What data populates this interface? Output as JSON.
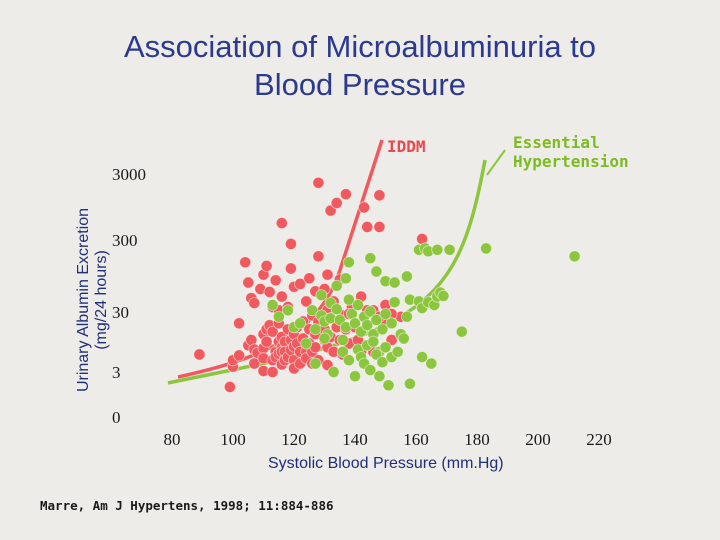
{
  "slide": {
    "title_line1": "Association of Microalbuminuria to",
    "title_line2": "Blood Pressure",
    "citation": "Marre, Am J Hypertens, 1998; 11:884-886"
  },
  "colors": {
    "background": "#eeece8",
    "title": "#2b3a8f",
    "iddm": "#f05a5f",
    "essential_hypertension": "#8cc63f",
    "iddm_label": "#e8484e",
    "eh_label": "#7cbb22"
  },
  "chart_data": {
    "type": "scatter",
    "xlabel": "Systolic Blood Pressure (mm.Hg)",
    "ylabel_line1": "Urinary Albumin Excretion",
    "ylabel_line2": "(mg/24 hours)",
    "xlim": [
      80,
      220
    ],
    "x_ticks": [
      80,
      100,
      120,
      140,
      160,
      180,
      200,
      220
    ],
    "y_ticks": [
      0,
      3,
      30,
      300,
      3000
    ],
    "y_tick_labels": [
      "0",
      "3",
      "30",
      "300",
      "3000"
    ],
    "y_scale": "log",
    "series": [
      {
        "name": "IDDM",
        "points": [
          [
            89,
            5.5
          ],
          [
            99,
            1.8
          ],
          [
            100,
            3.6
          ],
          [
            100,
            4.5
          ],
          [
            102,
            5.3
          ],
          [
            102,
            16
          ],
          [
            105,
            7.5
          ],
          [
            106,
            9
          ],
          [
            107,
            6.5
          ],
          [
            107,
            4
          ],
          [
            108,
            5.8
          ],
          [
            110,
            11
          ],
          [
            110,
            6.8
          ],
          [
            110,
            4.8
          ],
          [
            110,
            3.1
          ],
          [
            111,
            13
          ],
          [
            111,
            8.5
          ],
          [
            112,
            15
          ],
          [
            113,
            12
          ],
          [
            113,
            4.5
          ],
          [
            113,
            3
          ],
          [
            114,
            6
          ],
          [
            114,
            5
          ],
          [
            115,
            16
          ],
          [
            115,
            8.5
          ],
          [
            115,
            5.6
          ],
          [
            116,
            10
          ],
          [
            116,
            7
          ],
          [
            116,
            6
          ],
          [
            116,
            3.9
          ],
          [
            117,
            8.5
          ],
          [
            117,
            6
          ],
          [
            117,
            4.5
          ],
          [
            118,
            13
          ],
          [
            118,
            5
          ],
          [
            119,
            9
          ],
          [
            119,
            6.4
          ],
          [
            120,
            11
          ],
          [
            120,
            7.2
          ],
          [
            120,
            4.5
          ],
          [
            120,
            3.4
          ],
          [
            121,
            14
          ],
          [
            121,
            8
          ],
          [
            122,
            6
          ],
          [
            122,
            4
          ],
          [
            123,
            17
          ],
          [
            123,
            9.5
          ],
          [
            124,
            6
          ],
          [
            124,
            4.8
          ],
          [
            125,
            13
          ],
          [
            125,
            8
          ],
          [
            126,
            21
          ],
          [
            126,
            6
          ],
          [
            126,
            4
          ],
          [
            127,
            11
          ],
          [
            127,
            7
          ],
          [
            128,
            17
          ],
          [
            128,
            4.5
          ],
          [
            130,
            13
          ],
          [
            130,
            9
          ],
          [
            131,
            25
          ],
          [
            131,
            7
          ],
          [
            131,
            3.8
          ],
          [
            132,
            19
          ],
          [
            132,
            10
          ],
          [
            133,
            6
          ],
          [
            134,
            14
          ],
          [
            135,
            9
          ],
          [
            136,
            21
          ],
          [
            136,
            5.5
          ],
          [
            137,
            13
          ],
          [
            138,
            8
          ],
          [
            139,
            28
          ],
          [
            140,
            14
          ],
          [
            141,
            9
          ],
          [
            142,
            6
          ],
          [
            144,
            25
          ],
          [
            146,
            11
          ],
          [
            146,
            6
          ],
          [
            150,
            16
          ],
          [
            152,
            9
          ],
          [
            155,
            20
          ],
          [
            104,
            130
          ],
          [
            105,
            65
          ],
          [
            106,
            38
          ],
          [
            107,
            32
          ],
          [
            109,
            52
          ],
          [
            110,
            85
          ],
          [
            111,
            115
          ],
          [
            112,
            47
          ],
          [
            113,
            28
          ],
          [
            114,
            70
          ],
          [
            115,
            25
          ],
          [
            116,
            40
          ],
          [
            118,
            28
          ],
          [
            119,
            105
          ],
          [
            120,
            56
          ],
          [
            122,
            62
          ],
          [
            124,
            34
          ],
          [
            125,
            75
          ],
          [
            127,
            48
          ],
          [
            128,
            160
          ],
          [
            130,
            52
          ],
          [
            131,
            85
          ],
          [
            133,
            34
          ],
          [
            135,
            72
          ],
          [
            138,
            22
          ],
          [
            142,
            40
          ],
          [
            146,
            25
          ],
          [
            148,
            20
          ],
          [
            150,
            30
          ],
          [
            152,
            22
          ],
          [
            116,
            500
          ],
          [
            119,
            245
          ],
          [
            128,
            2000
          ],
          [
            132,
            770
          ],
          [
            134,
            1000
          ],
          [
            137,
            1350
          ],
          [
            144,
            440
          ],
          [
            143,
            860
          ],
          [
            148,
            1300
          ],
          [
            148,
            440
          ],
          [
            162,
            290
          ]
        ]
      },
      {
        "name": "Essential Hypertension",
        "points": [
          [
            113,
            30
          ],
          [
            115,
            20
          ],
          [
            120,
            14
          ],
          [
            122,
            16
          ],
          [
            126,
            25
          ],
          [
            127,
            13
          ],
          [
            129,
            42
          ],
          [
            129,
            21
          ],
          [
            130,
            17
          ],
          [
            131,
            11
          ],
          [
            132,
            32
          ],
          [
            132,
            19
          ],
          [
            134,
            26
          ],
          [
            135,
            18
          ],
          [
            136,
            9
          ],
          [
            137,
            14
          ],
          [
            138,
            36
          ],
          [
            139,
            22
          ],
          [
            140,
            16
          ],
          [
            141,
            30
          ],
          [
            142,
            12
          ],
          [
            143,
            20
          ],
          [
            144,
            15
          ],
          [
            145,
            24
          ],
          [
            146,
            11
          ],
          [
            147,
            18
          ],
          [
            148,
            6
          ],
          [
            149,
            13
          ],
          [
            150,
            22
          ],
          [
            152,
            16
          ],
          [
            153,
            33
          ],
          [
            155,
            11
          ],
          [
            157,
            20
          ],
          [
            158,
            36
          ],
          [
            161,
            34
          ],
          [
            162,
            27
          ],
          [
            164,
            33
          ],
          [
            166,
            30
          ],
          [
            167,
            40
          ],
          [
            168,
            46
          ],
          [
            169,
            41
          ],
          [
            118,
            25
          ],
          [
            124,
            8
          ],
          [
            127,
            4
          ],
          [
            130,
            9.5
          ],
          [
            133,
            3
          ],
          [
            136,
            6
          ],
          [
            138,
            4.5
          ],
          [
            140,
            2.6
          ],
          [
            141,
            6.5
          ],
          [
            142,
            5
          ],
          [
            143,
            4
          ],
          [
            144,
            7.5
          ],
          [
            145,
            3.2
          ],
          [
            146,
            8.5
          ],
          [
            147,
            5.5
          ],
          [
            148,
            2.6
          ],
          [
            149,
            4.2
          ],
          [
            150,
            7
          ],
          [
            151,
            1.9
          ],
          [
            152,
            5
          ],
          [
            154,
            6
          ],
          [
            156,
            9.5
          ],
          [
            158,
            2
          ],
          [
            162,
            5
          ],
          [
            165,
            4
          ],
          [
            175,
            12
          ],
          [
            134,
            58
          ],
          [
            137,
            75
          ],
          [
            138,
            130
          ],
          [
            145,
            150
          ],
          [
            147,
            95
          ],
          [
            150,
            68
          ],
          [
            153,
            65
          ],
          [
            157,
            80
          ],
          [
            161,
            200
          ],
          [
            163,
            210
          ],
          [
            164,
            190
          ],
          [
            167,
            200
          ],
          [
            171,
            200
          ],
          [
            183,
            210
          ],
          [
            212,
            160
          ]
        ]
      }
    ]
  }
}
